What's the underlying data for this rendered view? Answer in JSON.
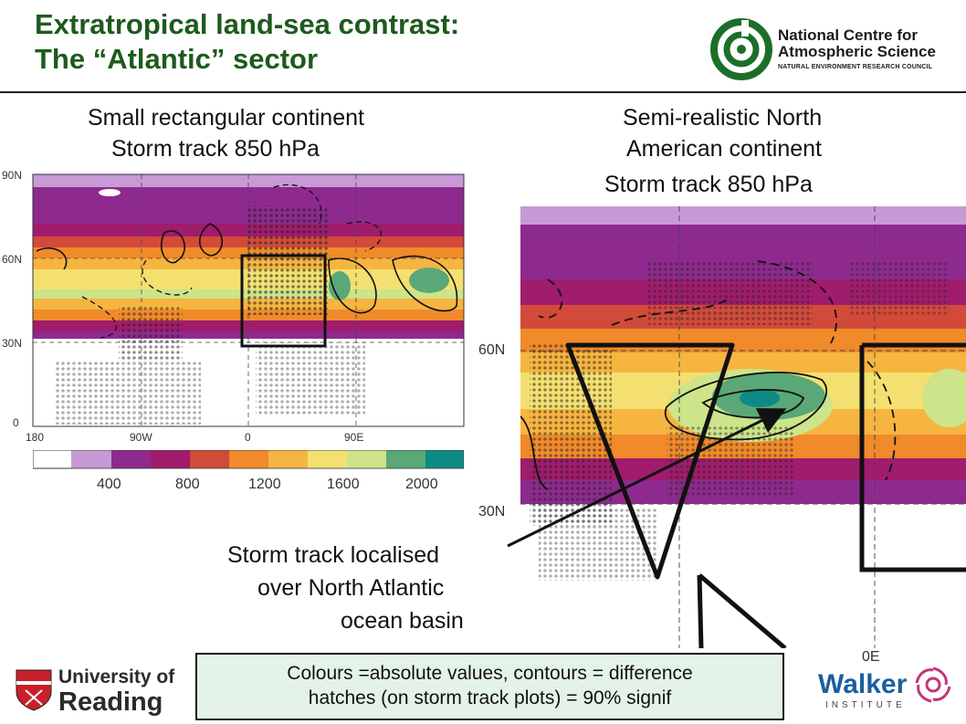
{
  "slide": {
    "title_line1": "Extratropical land-sea contrast:",
    "title_line2": "The “Atlantic” sector"
  },
  "logos": {
    "ncas_line1": "National Centre for",
    "ncas_line2": "Atmospheric Science",
    "ncas_sub": "NATURAL ENVIRONMENT RESEARCH COUNCIL",
    "uor_line1": "University of",
    "uor_line2": "Reading",
    "walker_name": "Walker",
    "walker_sub": "INSTITUTE"
  },
  "left_panel": {
    "heading_line1": "Small rectangular continent",
    "heading_line2": "Storm track 850 hPa",
    "lat_ticks": [
      "90N",
      "60N",
      "30N",
      "0"
    ],
    "lon_ticks": [
      "180",
      "90W",
      "0",
      "90E"
    ],
    "colorbar_ticks": [
      "400",
      "800",
      "1200",
      "1600",
      "2000"
    ]
  },
  "right_panel": {
    "heading_line1": "Semi-realistic North",
    "heading_line2": "American continent",
    "heading_line3": "Storm track 850 hPa",
    "lat_ticks": [
      "60N",
      "30N"
    ],
    "lon_tick_right": "0E"
  },
  "annotation": {
    "line1": "Storm track localised",
    "line2": "over North Atlantic",
    "line3": "ocean basin"
  },
  "note": {
    "line1": "Colours =absolute values, contours = difference",
    "line2": "hatches (on storm track plots) = 90% signif"
  },
  "colors": {
    "title_green": "#1e5a1e",
    "band_purple_light": "#c79ad6",
    "band_purple": "#8e2a8e",
    "band_magenta": "#a01c6c",
    "band_red": "#d24a3a",
    "band_orange": "#f08a2a",
    "band_yellow_orange": "#f6b540",
    "band_yellow": "#f4e070",
    "band_light_green": "#cde48a",
    "band_green": "#5aa878",
    "band_teal": "#0e8a86",
    "note_bg": "#e4f3e8"
  }
}
